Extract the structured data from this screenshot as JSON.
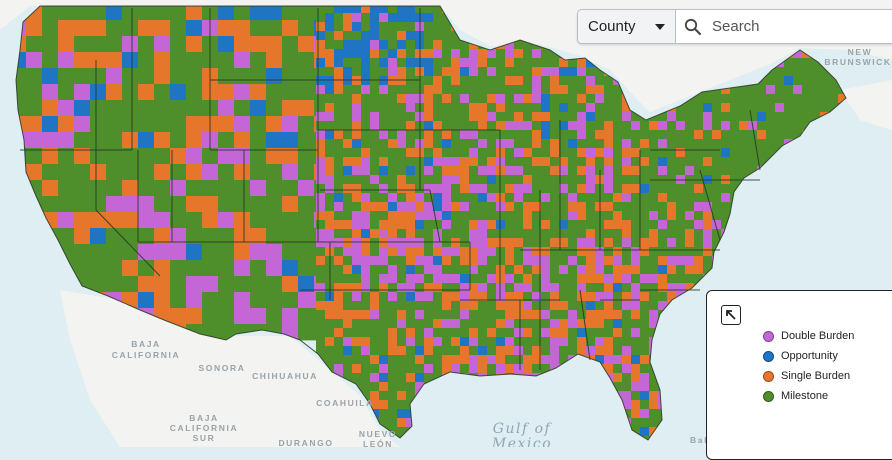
{
  "controls": {
    "level_select_value": "County",
    "search_placeholder": "Search"
  },
  "legend": {
    "items": [
      {
        "label": "Double Burden",
        "color": "#c466d6"
      },
      {
        "label": "Opportunity",
        "color": "#1f74c4"
      },
      {
        "label": "Single Burden",
        "color": "#e6762c"
      },
      {
        "label": "Milestone",
        "color": "#4e8e2b"
      }
    ]
  },
  "basemap": {
    "labels": {
      "new_brunswick": [
        "NEW",
        "BRUNSWICK"
      ],
      "baja_california": [
        "BAJA",
        "CALIFORNIA"
      ],
      "sonora": "SONORA",
      "chihuahua": "CHIHUAHUA",
      "coahuila": "COAHUILA",
      "baja_california_sur": [
        "BAJA",
        "CALIFORNIA",
        "SUR"
      ],
      "nuevo_leon": [
        "NUEVO",
        "LEÓN"
      ],
      "durango": "DURANGO",
      "gulf_of_mexico": [
        "Gulf of",
        "Mexico"
      ],
      "bahamas_partial": "Bah"
    },
    "colors": {
      "water": "#dfeef2",
      "land": "#f3f3f1",
      "border": "#2b3a2b"
    }
  }
}
